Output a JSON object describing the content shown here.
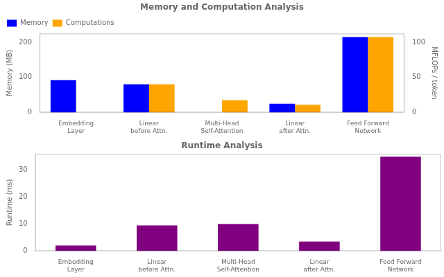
{
  "chart_data": [
    {
      "type": "bar",
      "title": "Memory and Computation Analysis",
      "categories": [
        "Embedding\nLayer",
        "Linear\nbefore Attn.",
        "Multi-Head\nSelf-Attention",
        "Linear\nafter Attn.",
        "Feed Forward\nNetwork"
      ],
      "series": [
        {
          "name": "Memory",
          "color": "#0000ff",
          "values": [
            92,
            80,
            0,
            25,
            215
          ]
        },
        {
          "name": "Computations",
          "color": "#ffa500",
          "values": [
            0,
            80,
            35,
            22,
            215
          ]
        }
      ],
      "ylabel": "Memory (MB)",
      "ylim": [
        0,
        225
      ],
      "yticks": [
        0,
        100,
        200
      ],
      "y2label": "MFLOPs / token",
      "y2lim": [
        0,
        112.5
      ],
      "y2ticks": [
        0,
        50,
        100
      ],
      "legend": "upper left",
      "grid": false
    },
    {
      "type": "bar",
      "title": "Runtime Analysis",
      "categories": [
        "Embedding\nLayer",
        "Linear\nbefore Attn.",
        "Multi-Head\nSelf-Attention",
        "Linear\nafter Attn.",
        "Feed Forward\nNetwork"
      ],
      "values": [
        2,
        9.5,
        10,
        3.5,
        35
      ],
      "color": "#800080",
      "ylabel": "Runtime (ms)",
      "ylim": [
        0,
        36
      ],
      "yticks": [
        0,
        10,
        20,
        30
      ],
      "grid": false
    }
  ]
}
